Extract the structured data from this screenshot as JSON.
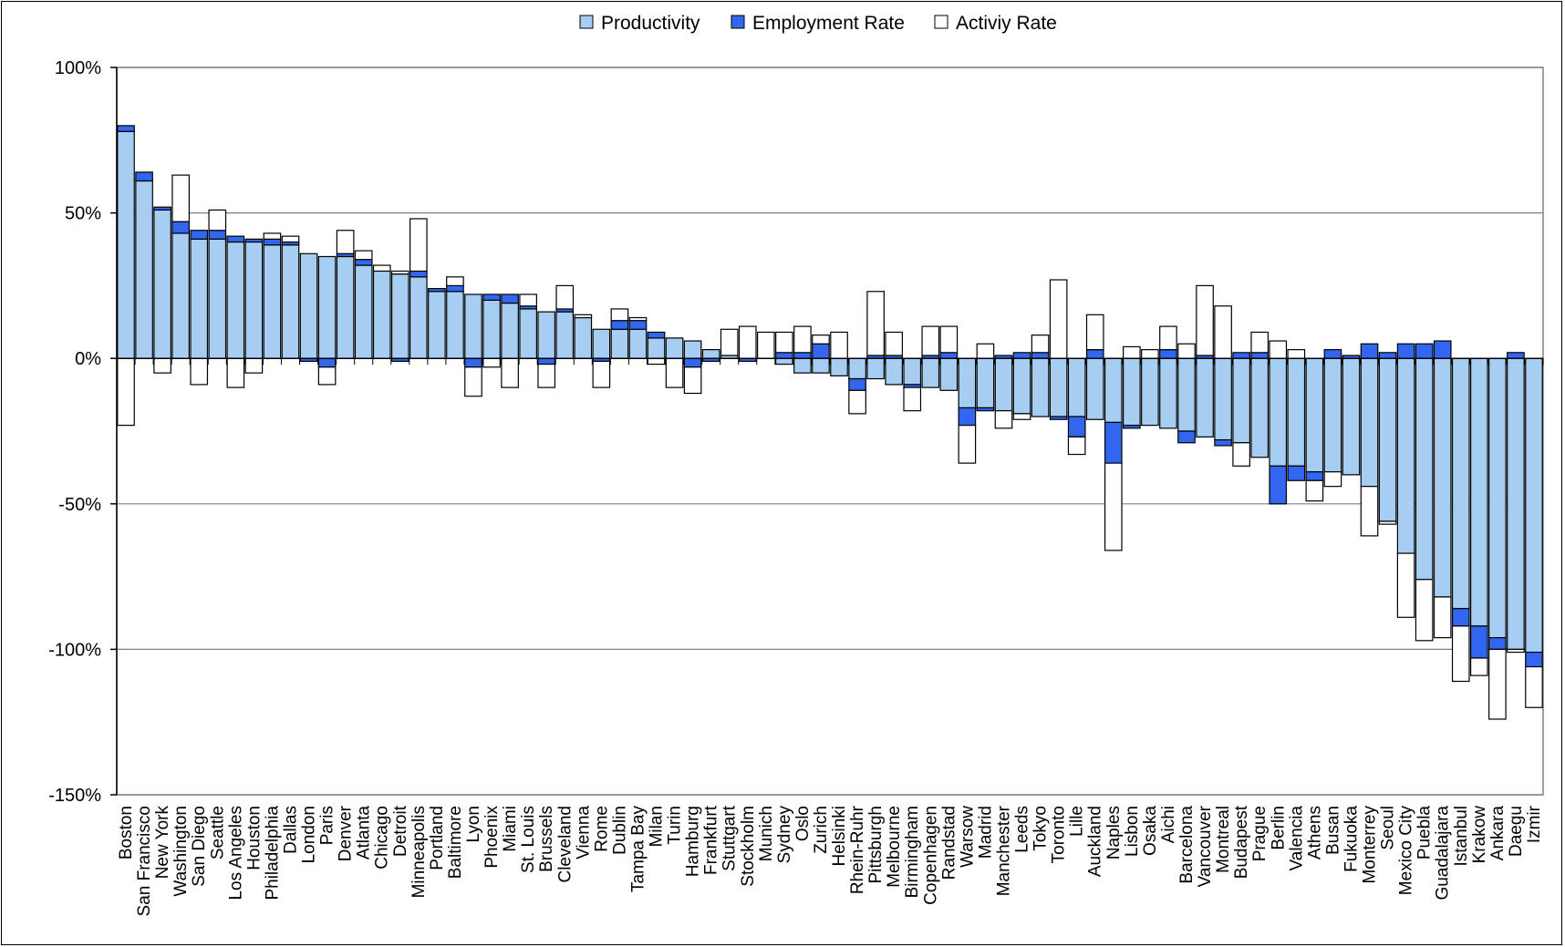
{
  "chart_data": {
    "type": "bar",
    "stacked": true,
    "title": "",
    "xlabel": "",
    "ylabel": "",
    "ylim": [
      -150,
      100
    ],
    "y_ticks": [
      "100%",
      "50%",
      "0%",
      "-50%",
      "-100%",
      "-150%"
    ],
    "grid": true,
    "legend_position": "top",
    "colors": {
      "Productivity": "#a6cdf2",
      "Employment Rate": "#3366ee",
      "Activiy Rate": "#ffffff"
    },
    "categories": [
      "Boston",
      "San Francisco",
      "New York",
      "Washington",
      "San Diego",
      "Seattle",
      "Los Angeles",
      "Houston",
      "Philadelphia",
      "Dallas",
      "London",
      "Paris",
      "Denver",
      "Atlanta",
      "Chicago",
      "Detroit",
      "Minneapolis",
      "Portland",
      "Baltimore",
      "Lyon",
      "Phoenix",
      "Miami",
      "St. Louis",
      "Brussels",
      "Cleveland",
      "Vienna",
      "Rome",
      "Dublin",
      "Tampa Bay",
      "Milan",
      "Turin",
      "Hamburg",
      "Frankfurt",
      "Stuttgart",
      "Stockholm",
      "Munich",
      "Sydney",
      "Oslo",
      "Zurich",
      "Helsinki",
      "Rhein-Ruhr",
      "Pittsburgh",
      "Melbourne",
      "Birmingham",
      "Copenhagen",
      "Randstad",
      "Warsow",
      "Madrid",
      "Manchester",
      "Leeds",
      "Tokyo",
      "Toronto",
      "Lille",
      "Auckland",
      "Naples",
      "Lisbon",
      "Osaka",
      "Aichi",
      "Barcelona",
      "Vancouver",
      "Montreal",
      "Budapest",
      "Prague",
      "Berlin",
      "Valencia",
      "Athens",
      "Busan",
      "Fukuoka",
      "Monterrey",
      "Seoul",
      "Mexico City",
      "Puebla",
      "Guadalajara",
      "Istanbul",
      "Krakow",
      "Ankara",
      "Daegu",
      "Izmir"
    ],
    "series": [
      {
        "name": "Productivity",
        "values": [
          78,
          61,
          51,
          43,
          41,
          41,
          40,
          40,
          39,
          39,
          36,
          35,
          35,
          32,
          30,
          29,
          28,
          23,
          23,
          22,
          20,
          19,
          17,
          16,
          16,
          14,
          10,
          10,
          10,
          7,
          7,
          6,
          3,
          1,
          0,
          0,
          -2,
          -5,
          -5,
          -6,
          -7,
          -7,
          -9,
          -9,
          -10,
          -11,
          -17,
          -17,
          -18,
          -19,
          -20,
          -20,
          -20,
          -21,
          -22,
          -23,
          -23,
          -24,
          -25,
          -27,
          -28,
          -29,
          -34,
          -37,
          -37,
          -39,
          -39,
          -40,
          -44,
          -56,
          -67,
          -76,
          -82,
          -86,
          -92,
          -96,
          -100,
          -101
        ]
      },
      {
        "name": "Employment Rate",
        "values": [
          2,
          3,
          1,
          4,
          3,
          3,
          2,
          1,
          2,
          1,
          -1,
          -3,
          1,
          2,
          0,
          -1,
          2,
          1,
          2,
          -3,
          2,
          3,
          1,
          -2,
          1,
          0,
          -1,
          3,
          3,
          2,
          0,
          -3,
          -1,
          0,
          -1,
          0,
          2,
          2,
          5,
          0,
          -4,
          1,
          1,
          -1,
          1,
          2,
          -6,
          -1,
          1,
          2,
          2,
          -1,
          -7,
          3,
          -14,
          -1,
          0,
          3,
          -4,
          1,
          -2,
          2,
          2,
          -13,
          -5,
          -3,
          3,
          1,
          5,
          2,
          5,
          5,
          6,
          -6,
          -11,
          -4,
          2,
          -5
        ]
      },
      {
        "name": "Activiy Rate",
        "values": [
          -23,
          0,
          -5,
          16,
          -9,
          7,
          -10,
          -5,
          2,
          2,
          0,
          -6,
          8,
          3,
          2,
          1,
          18,
          0,
          3,
          -10,
          -3,
          -10,
          4,
          -8,
          8,
          1,
          -9,
          4,
          1,
          -2,
          -10,
          -9,
          0,
          9,
          11,
          9,
          7,
          9,
          3,
          9,
          -8,
          22,
          8,
          -8,
          10,
          9,
          -13,
          5,
          -6,
          -2,
          6,
          27,
          -6,
          12,
          -30,
          4,
          3,
          8,
          5,
          24,
          18,
          -8,
          7,
          6,
          3,
          -7,
          -5,
          0,
          -17,
          -1,
          -22,
          -21,
          -14,
          -19,
          -6,
          -24,
          -1,
          -14
        ]
      }
    ]
  }
}
